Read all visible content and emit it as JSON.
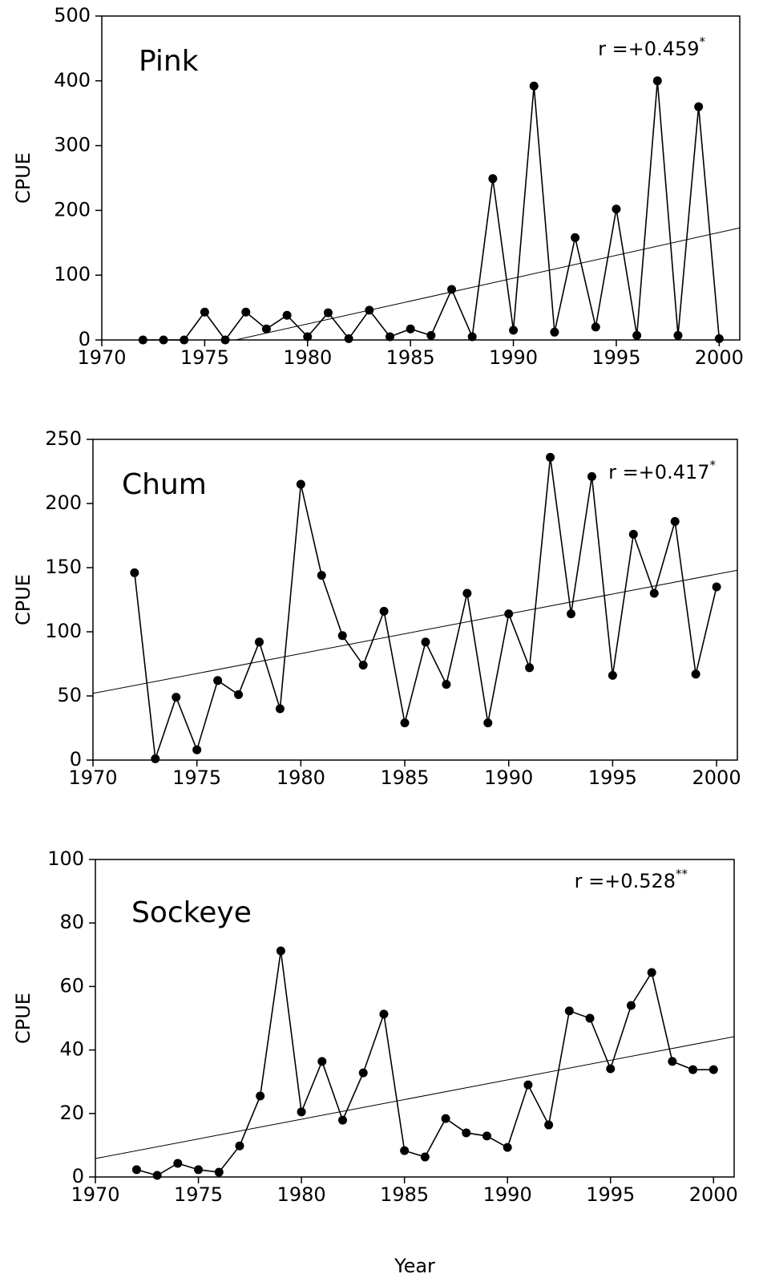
{
  "chart_data": [
    {
      "type": "line",
      "label": "Pink",
      "annotation": "r =+0.459",
      "annotation_sup": "*",
      "y_label": "CPUE",
      "x": [
        1972,
        1973,
        1974,
        1975,
        1976,
        1977,
        1978,
        1979,
        1980,
        1981,
        1982,
        1983,
        1984,
        1985,
        1986,
        1987,
        1988,
        1989,
        1990,
        1991,
        1992,
        1993,
        1994,
        1995,
        1996,
        1997,
        1998,
        1999,
        2000
      ],
      "values": [
        0,
        0,
        0,
        43,
        0,
        43,
        17,
        38,
        5,
        42,
        2,
        46,
        5,
        17,
        7,
        78,
        5,
        249,
        15,
        392,
        12,
        158,
        20,
        202,
        7,
        400,
        7,
        360,
        2
      ],
      "trend": {
        "x": [
          1976.5,
          2001
        ],
        "values": [
          0,
          173
        ]
      },
      "color": "#000000",
      "xlim": [
        1970,
        2001
      ],
      "xticks": [
        1970,
        1975,
        1980,
        1985,
        1990,
        1995,
        2000
      ],
      "ylim": [
        0,
        500
      ],
      "yticks": [
        0,
        100,
        200,
        300,
        400,
        500
      ]
    },
    {
      "type": "line",
      "label": "Chum",
      "annotation": "r =+0.417",
      "annotation_sup": "*",
      "y_label": "CPUE",
      "x": [
        1972,
        1973,
        1974,
        1975,
        1976,
        1977,
        1978,
        1979,
        1980,
        1981,
        1982,
        1983,
        1984,
        1985,
        1986,
        1987,
        1988,
        1989,
        1990,
        1991,
        1992,
        1993,
        1994,
        1995,
        1996,
        1997,
        1998,
        1999,
        2000
      ],
      "values": [
        146,
        1,
        49,
        8,
        62,
        51,
        92,
        40,
        215,
        144,
        97,
        74,
        116,
        29,
        92,
        59,
        130,
        29,
        114,
        72,
        236,
        114,
        221,
        66,
        176,
        130,
        186,
        67,
        135
      ],
      "trend": {
        "x": [
          1970,
          2001
        ],
        "values": [
          52,
          148
        ]
      },
      "color": "#000000",
      "xlim": [
        1970,
        2001
      ],
      "xticks": [
        1970,
        1975,
        1980,
        1985,
        1990,
        1995,
        2000
      ],
      "ylim": [
        0,
        250
      ],
      "yticks": [
        0,
        50,
        100,
        150,
        200,
        250
      ]
    },
    {
      "type": "line",
      "label": "Sockeye",
      "annotation": "r =+0.528",
      "annotation_sup": "**",
      "y_label": "CPUE",
      "x_label": "Year",
      "x": [
        1972,
        1973,
        1974,
        1975,
        1976,
        1977,
        1978,
        1979,
        1980,
        1981,
        1982,
        1983,
        1984,
        1985,
        1986,
        1987,
        1988,
        1989,
        1990,
        1991,
        1992,
        1993,
        1994,
        1995,
        1996,
        1997,
        1998,
        1999,
        2000
      ],
      "values": [
        2.3,
        0.5,
        4.3,
        2.3,
        1.5,
        9.8,
        25.5,
        71.2,
        20.5,
        36.4,
        17.9,
        32.8,
        51.3,
        8.3,
        6.3,
        18.4,
        13.9,
        12.9,
        9.3,
        29,
        16.4,
        52.3,
        50,
        34.1,
        54,
        64.4,
        36.4,
        33.8,
        33.8
      ],
      "trend": {
        "x": [
          1970,
          2001
        ],
        "values": [
          5.8,
          44.2
        ]
      },
      "color": "#000000",
      "xlim": [
        1970,
        2001
      ],
      "xticks": [
        1970,
        1975,
        1980,
        1985,
        1990,
        1995,
        2000
      ],
      "ylim": [
        0,
        100
      ],
      "yticks": [
        0,
        20,
        40,
        60,
        80,
        100
      ]
    }
  ]
}
